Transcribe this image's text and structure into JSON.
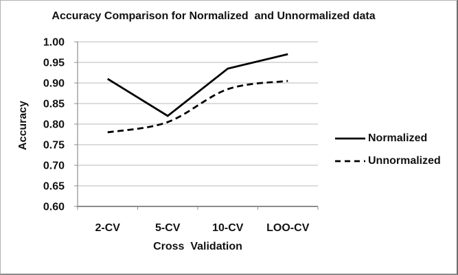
{
  "chart_data": {
    "type": "line",
    "title": "Accuracy Comparison for Normalized  and Unnormalized data",
    "xlabel": "Cross  Validation",
    "ylabel": "Accuracy",
    "categories": [
      "2-CV",
      "5-CV",
      "10-CV",
      "LOO-CV"
    ],
    "series": [
      {
        "name": "Normalized",
        "line_style": "solid",
        "smooth": false,
        "values": [
          0.91,
          0.82,
          0.935,
          0.97
        ]
      },
      {
        "name": "Unnormalized",
        "line_style": "dashed",
        "smooth": true,
        "values": [
          0.78,
          0.805,
          0.885,
          0.905
        ]
      }
    ],
    "ylim": [
      0.6,
      1.0
    ],
    "ytick_step": 0.05,
    "ytick_labels": [
      "0.60",
      "0.65",
      "0.70",
      "0.75",
      "0.80",
      "0.85",
      "0.90",
      "0.95",
      "1.00"
    ],
    "grid": true,
    "legend_position": "right",
    "colors": {
      "line": "#000000",
      "grid": "#b9b9b9",
      "axis": "#8c8c8c",
      "text": "#111111",
      "background": "#ffffff"
    }
  },
  "legend": {
    "items": [
      {
        "label": "Normalized"
      },
      {
        "label": "Unnormalized"
      }
    ]
  }
}
